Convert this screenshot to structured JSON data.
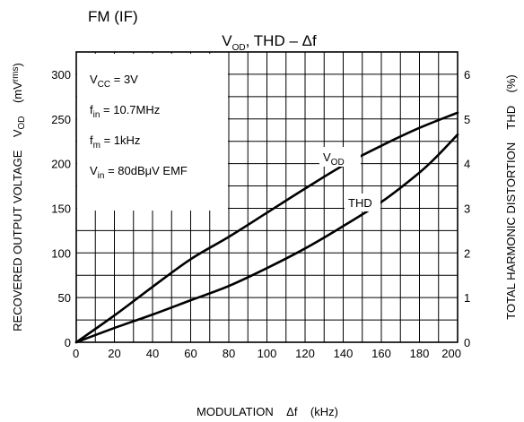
{
  "header": {
    "category": "FM (IF)",
    "title_v": "V",
    "title_v_sub": "OD",
    "title_rest": ", THD  –  Δf"
  },
  "conditions": {
    "vcc": {
      "main": "V",
      "sub": "CC",
      "rest": " = 3V"
    },
    "fin": {
      "main": "f",
      "sub": "in",
      "rest": " = 10.7MHz"
    },
    "fm": {
      "main": "f",
      "sub": "m",
      "rest": " = 1kHz"
    },
    "vin": {
      "main": "V",
      "sub": "in",
      "rest": " = 80dBμV EMF"
    }
  },
  "chart_data": {
    "type": "line",
    "xlabel": "MODULATION    Δf    (kHz)",
    "ylabel": "RECOVERED OUTPUT VOLTAGE    V",
    "ylabel_sub": "OD",
    "ylabel_unit_main": "    (mV",
    "ylabel_unit_sub": "rms",
    "ylabel_unit_end": ")",
    "y2label": "TOTAL HARMONIC DISTORTION    THD    (%)",
    "xlim": [
      0,
      200
    ],
    "ylim": [
      0,
      325
    ],
    "y2lim": [
      0,
      6.5
    ],
    "xticks": [
      "0",
      "20",
      "40",
      "60",
      "80",
      "100",
      "120",
      "140",
      "160",
      "180",
      "200"
    ],
    "yticks": [
      "0",
      "50",
      "100",
      "150",
      "200",
      "250",
      "300"
    ],
    "y2ticks": [
      "0",
      "1",
      "2",
      "3",
      "4",
      "5",
      "6"
    ],
    "grid": true,
    "series": [
      {
        "name": "VOD",
        "label_main": "V",
        "label_sub": "OD",
        "axis": "left",
        "x": [
          0,
          20,
          40,
          60,
          80,
          100,
          120,
          140,
          160,
          180,
          200
        ],
        "y": [
          0,
          30,
          62,
          93,
          118,
          145,
          172,
          198,
          220,
          240,
          257
        ]
      },
      {
        "name": "THD",
        "label_main": "THD",
        "label_sub": "",
        "axis": "right",
        "x": [
          0,
          20,
          40,
          60,
          80,
          100,
          120,
          140,
          160,
          180,
          190,
          200
        ],
        "y": [
          0,
          0.32,
          0.62,
          0.94,
          1.26,
          1.66,
          2.1,
          2.6,
          3.14,
          3.8,
          4.2,
          4.65
        ]
      }
    ]
  }
}
